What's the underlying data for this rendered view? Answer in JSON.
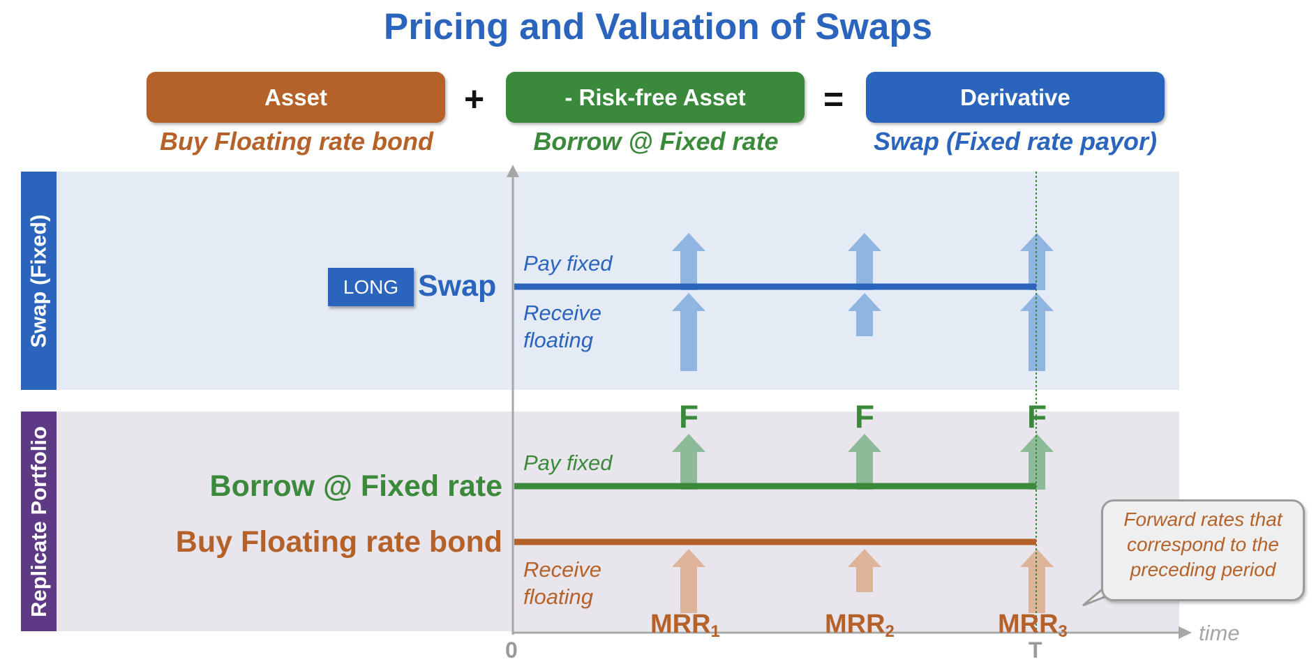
{
  "title": "Pricing and Valuation of Swaps",
  "equation": {
    "asset": {
      "label": "Asset",
      "sublabel": "Buy Floating rate bond",
      "color": "#b5622a"
    },
    "plus": "+",
    "riskfree": {
      "label": "- Risk-free Asset",
      "sublabel": "Borrow @ Fixed rate",
      "color": "#3b8a3b"
    },
    "equals": "=",
    "derivative": {
      "label": "Derivative",
      "sublabel": "Swap (Fixed rate payor)",
      "color": "#2a64bd"
    }
  },
  "swap_band": {
    "label": "Swap (Fixed)",
    "long_badge": "LONG",
    "name": "Swap",
    "pay_caption": "Pay fixed",
    "receive_caption_1": "Receive",
    "receive_caption_2": "floating"
  },
  "portfolio_band": {
    "label": "Replicate Portfolio",
    "borrow_label": "Borrow @ Fixed rate",
    "bond_label": "Buy Floating rate bond",
    "pay_caption": "Pay fixed",
    "receive_caption_1": "Receive",
    "receive_caption_2": "floating"
  },
  "fixed_flow_label": "F",
  "floating_flows": [
    {
      "name": "MRR",
      "index": "1"
    },
    {
      "name": "MRR",
      "index": "2"
    },
    {
      "name": "MRR",
      "index": "3"
    }
  ],
  "axis": {
    "origin": "0",
    "maturity": "T",
    "label": "time"
  },
  "callout": "Forward rates that correspond to the preceding period",
  "colors": {
    "swap_band_bg": "#e4ebf5",
    "portfolio_band_bg": "#e9e5ed",
    "swap_band_label": "#2a64bd",
    "portfolio_band_label": "#5e3a84",
    "swap_arrow": "#90b5e0",
    "fixed_arrow": "#8dba98",
    "floating_arrow": "#ddb39a"
  }
}
